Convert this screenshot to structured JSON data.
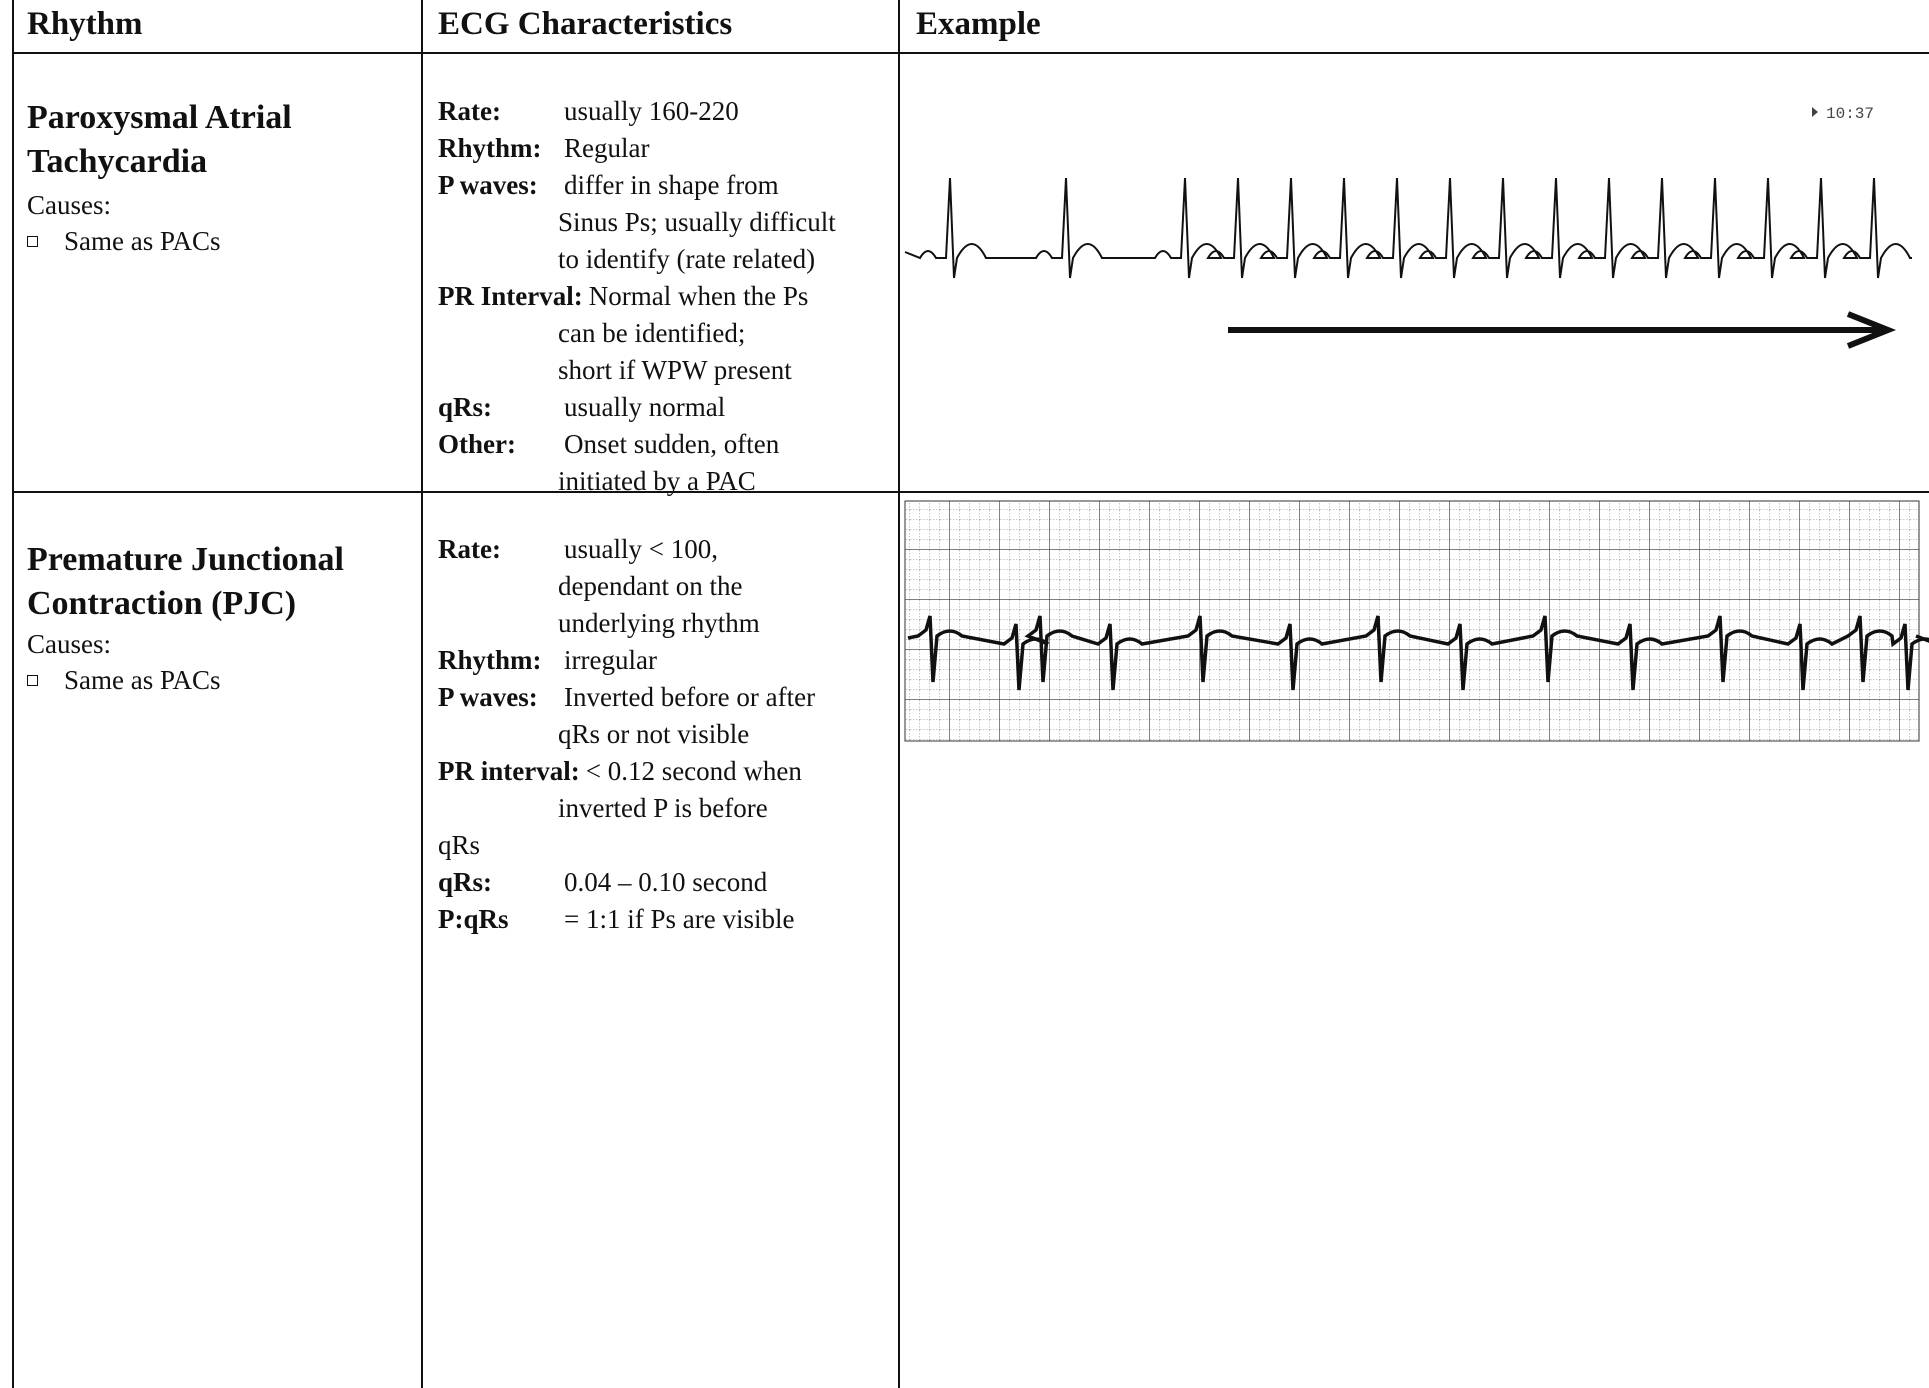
{
  "table": {
    "header": [
      "Rhythm",
      "ECG Characteristics",
      "Example"
    ],
    "rows": [
      {
        "title": [
          "Paroxysmal Atrial",
          "Tachycardia"
        ],
        "causes_label": "Causes:",
        "causes": [
          "Same as PACs"
        ],
        "characteristics": [
          {
            "label": "Rate:",
            "text": [
              "usually 160-220"
            ]
          },
          {
            "label": "Rhythm:",
            "text": [
              "Regular"
            ]
          },
          {
            "label": "P waves:",
            "text": [
              "differ in shape from",
              "Sinus Ps; usually difficult",
              "to identify (rate related)"
            ]
          },
          {
            "label": "PR Interval:",
            "text": [
              "Normal when the Ps",
              "can be identified;",
              "short if WPW present"
            ]
          },
          {
            "label": "qRs:",
            "text": [
              "usually normal"
            ]
          },
          {
            "label": "Other:",
            "text": [
              "Onset sudden, often",
              "initiated by a PAC"
            ]
          }
        ],
        "example_time": "10:37"
      },
      {
        "title": [
          "Premature Junctional",
          "Contraction (PJC)"
        ],
        "causes_label": "Causes:",
        "causes": [
          "Same as PACs"
        ],
        "characteristics": [
          {
            "label": "Rate:",
            "text": [
              "usually < 100,",
              "dependant on the",
              "underlying rhythm"
            ]
          },
          {
            "label": "Rhythm:",
            "text": [
              "irregular"
            ]
          },
          {
            "label": "P waves:",
            "text": [
              "Inverted before or after",
              "qRs or not visible"
            ]
          },
          {
            "label": "PR interval:",
            "text": [
              "< 0.12 second when",
              "inverted P is before"
            ]
          },
          {
            "text": [
              "qRs"
            ]
          },
          {
            "label": "qRs:",
            "text": [
              "0.04 – 0.10 second"
            ]
          },
          {
            "label": "P:qRs",
            "text": [
              "=  1:1 if Ps are visible"
            ]
          }
        ]
      }
    ]
  }
}
